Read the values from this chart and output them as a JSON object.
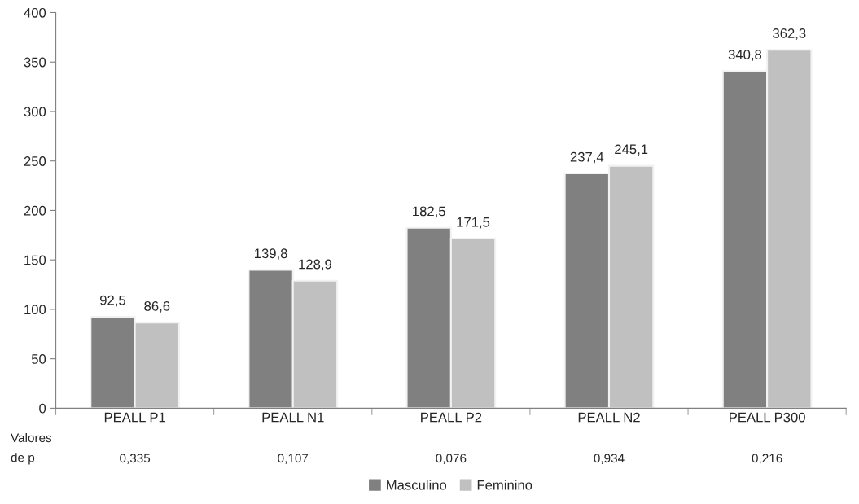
{
  "chart_data": {
    "type": "bar",
    "categories": [
      "PEALL P1",
      "PEALL N1",
      "PEALL P2",
      "PEALL N2",
      "PEALL P300"
    ],
    "series": [
      {
        "name": "Masculino",
        "color": "#808080",
        "values": [
          92.5,
          139.8,
          182.5,
          237.4,
          340.8
        ],
        "value_labels": [
          "92,5",
          "139,8",
          "182,5",
          "237,4",
          "340,8"
        ]
      },
      {
        "name": "Feminino",
        "color": "#c0c0c0",
        "values": [
          86.6,
          128.9,
          171.5,
          245.1,
          362.3
        ],
        "value_labels": [
          "86,6",
          "128,9",
          "171,5",
          "245,1",
          "362,3"
        ]
      }
    ],
    "ylim": [
      0,
      400
    ],
    "yticks": [
      0,
      50,
      100,
      150,
      200,
      250,
      300,
      350,
      400
    ],
    "grid": false,
    "legend": "bottom",
    "annotations": [
      "Valores\nde p",
      "0,335",
      "0,107",
      "0,076",
      "0,934",
      "0,216"
    ]
  }
}
